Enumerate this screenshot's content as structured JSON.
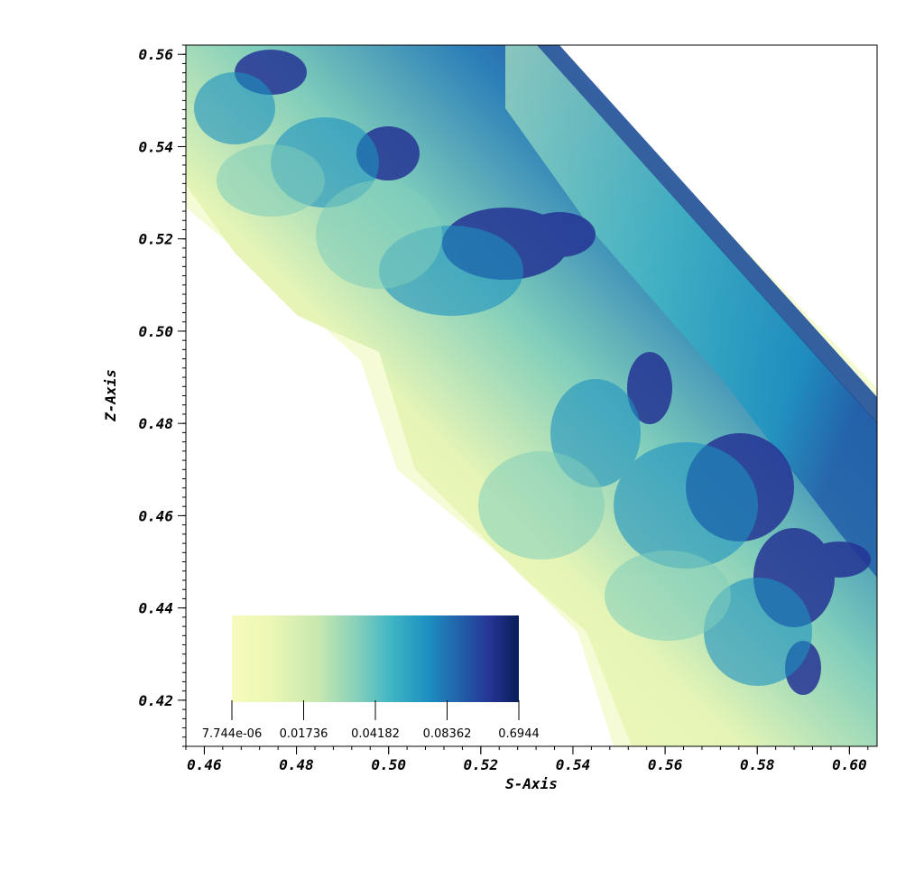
{
  "chart_data": {
    "type": "heatmap",
    "xlabel": "S-Axis",
    "ylabel": "Z-Axis",
    "xlim": [
      0.456,
      0.606
    ],
    "ylim": [
      0.41,
      0.562
    ],
    "x_ticks": [
      "0.46",
      "0.48",
      "0.50",
      "0.52",
      "0.54",
      "0.56",
      "0.58",
      "0.60"
    ],
    "y_ticks": [
      "0.56",
      "0.54",
      "0.52",
      "0.50",
      "0.48",
      "0.46",
      "0.44",
      "0.42"
    ],
    "colorbar": {
      "labels": [
        "7.744e-06",
        "0.01736",
        "0.04182",
        "0.08362",
        "0.6944"
      ],
      "colors": [
        "#f7fbbd",
        "#eef8b4",
        "#c8e8b0",
        "#7fcdbb",
        "#41b6c4",
        "#1d91c0",
        "#225ea8",
        "#253494",
        "#081d58"
      ]
    },
    "grid": false
  }
}
